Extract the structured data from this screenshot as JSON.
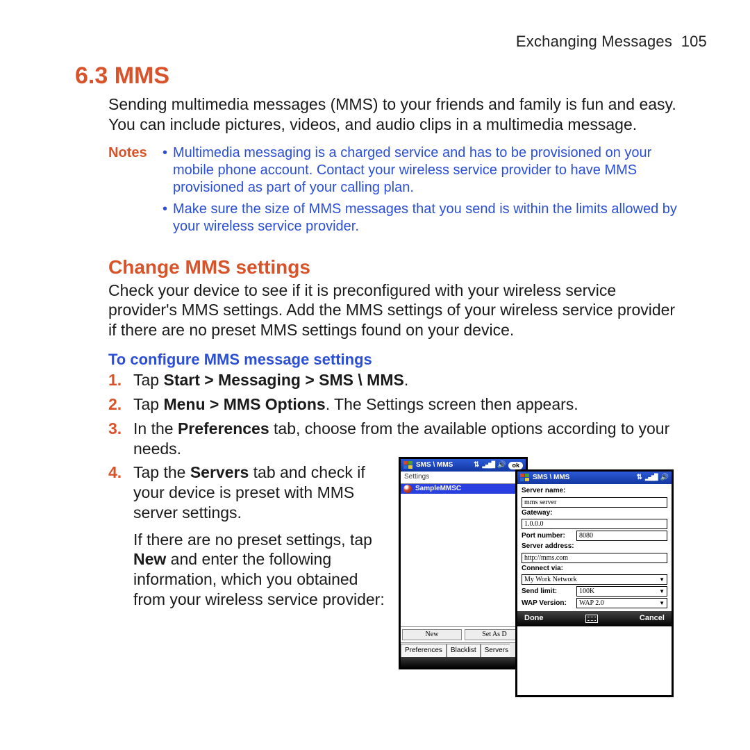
{
  "runningHead": {
    "chapter": "Exchanging Messages",
    "page": "105"
  },
  "section": {
    "number": "6.3",
    "title": "MMS"
  },
  "intro": "Sending multimedia messages (MMS) to your friends and family is fun and easy. You can include pictures, videos, and audio clips in a multimedia message.",
  "notesLabel": "Notes",
  "notes": [
    "Multimedia messaging is a charged service and has to be provisioned on your mobile phone account. Contact your wireless service provider to have MMS provisioned as part of your calling plan.",
    "Make sure the size of MMS messages that you send is within the limits allowed by your wireless service provider."
  ],
  "h2": "Change MMS settings",
  "h2Body": "Check your device to see if it is preconfigured with your wireless service provider's MMS settings. Add the MMS settings of your wireless service provider if there are no preset MMS settings found on your device.",
  "h3": "To configure MMS message settings",
  "steps": {
    "s1": {
      "pre": "Tap ",
      "bold": "Start > Messaging > SMS \\ MMS",
      "post": "."
    },
    "s2": {
      "pre": "Tap ",
      "bold": "Menu > MMS Options",
      "post": ". The Settings screen then appears."
    },
    "s3": {
      "pre": "In the ",
      "bold": "Preferences",
      "post": " tab, choose from the available options according to your needs."
    },
    "s4a": {
      "pre": "Tap the ",
      "bold": "Servers",
      "post": " tab and check if your device is preset with MMS server settings."
    },
    "s4b": {
      "pre": "If there are no preset settings, tap ",
      "bold": "New",
      "post": " and enter the following information, which you obtained from your wireless service provider:"
    }
  },
  "devA": {
    "title": "SMS \\ MMS",
    "ok": "ok",
    "subhead": "Settings",
    "selected": "SampleMMSC",
    "btnNew": "New",
    "btnDefault": "Set As D",
    "tabs": [
      "Preferences",
      "Blacklist",
      "Servers"
    ]
  },
  "devB": {
    "title": "SMS \\ MMS",
    "labels": {
      "serverName": "Server name:",
      "gateway": "Gateway:",
      "port": "Port number:",
      "serverAddr": "Server address:",
      "connect": "Connect via:",
      "sendLimit": "Send limit:",
      "wap": "WAP Version:"
    },
    "values": {
      "serverName": "mms server",
      "gateway": "1.0.0.0",
      "port": "8080",
      "serverAddr": "http://mms.com",
      "connect": "My Work Network",
      "sendLimit": "100K",
      "wap": "WAP 2.0"
    },
    "done": "Done",
    "cancel": "Cancel"
  }
}
